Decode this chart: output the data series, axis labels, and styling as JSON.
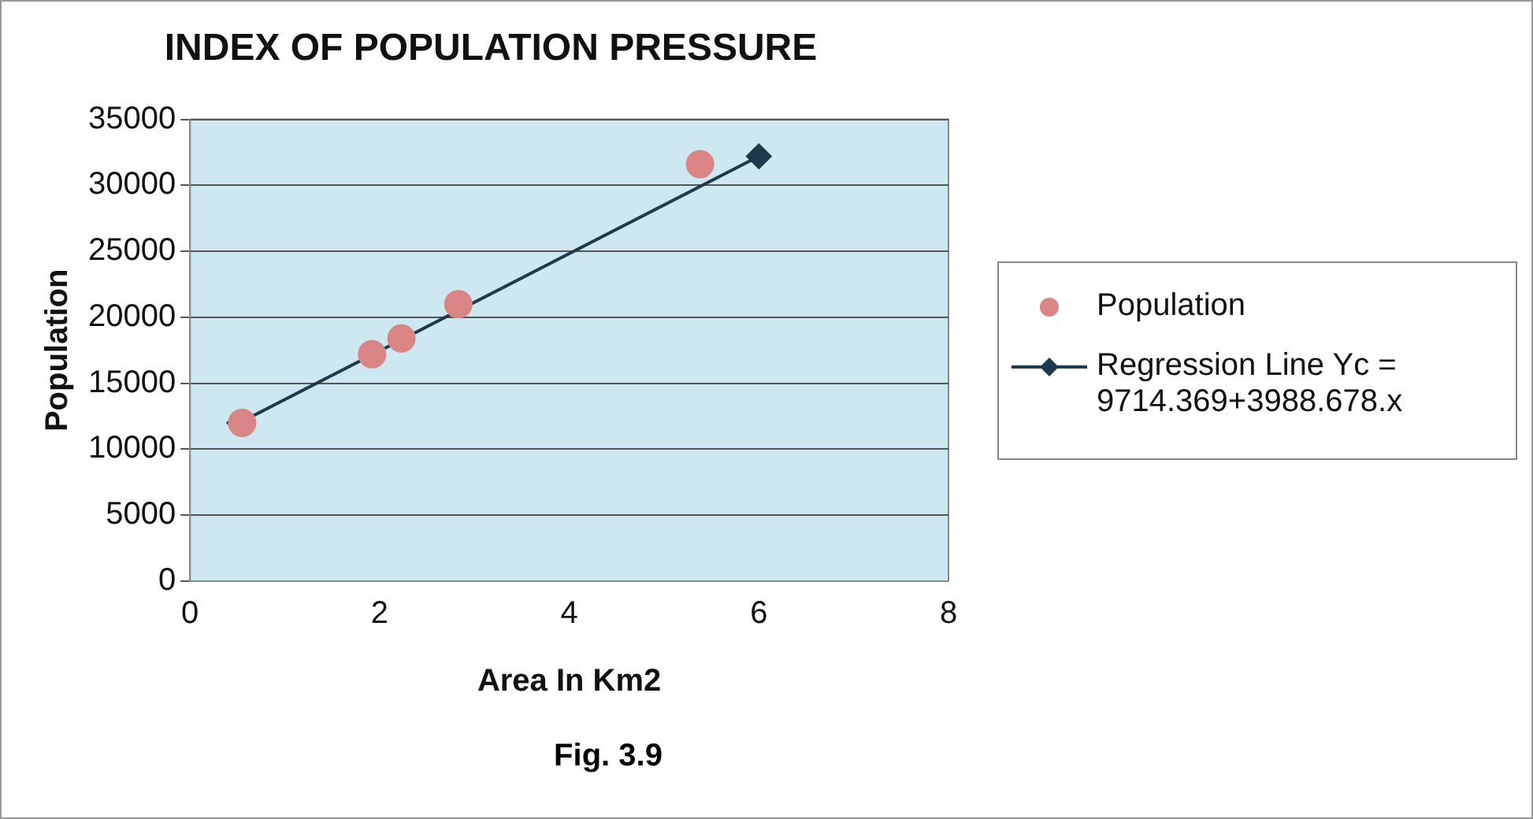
{
  "chart_data": {
    "type": "scatter",
    "title": "INDEX OF POPULATION PRESSURE",
    "xlabel": "Area In Km2",
    "ylabel": "Population",
    "annotations": [
      "Fig. 3.9"
    ],
    "xlim": [
      0,
      8
    ],
    "xticks": [
      0,
      2,
      4,
      6,
      8
    ],
    "ylim": [
      0,
      35000
    ],
    "yticks": [
      0,
      5000,
      10000,
      15000,
      20000,
      25000,
      30000,
      35000
    ],
    "grid": "y",
    "legend": "right",
    "series": [
      {
        "name": "Population",
        "marker": "circle",
        "color": "#d98585",
        "x": [
          0.55,
          1.92,
          2.23,
          2.83,
          5.38
        ],
        "values": [
          12000,
          17200,
          18400,
          21000,
          31600
        ]
      },
      {
        "name": "Regression Line Yc = 9714.369+3988.678.x",
        "type": "line",
        "marker": "diamond",
        "line_style": "solid",
        "color": "#1c3a4c",
        "x": [
          0.52,
          6
        ],
        "values": [
          12000,
          32200
        ]
      }
    ]
  }
}
